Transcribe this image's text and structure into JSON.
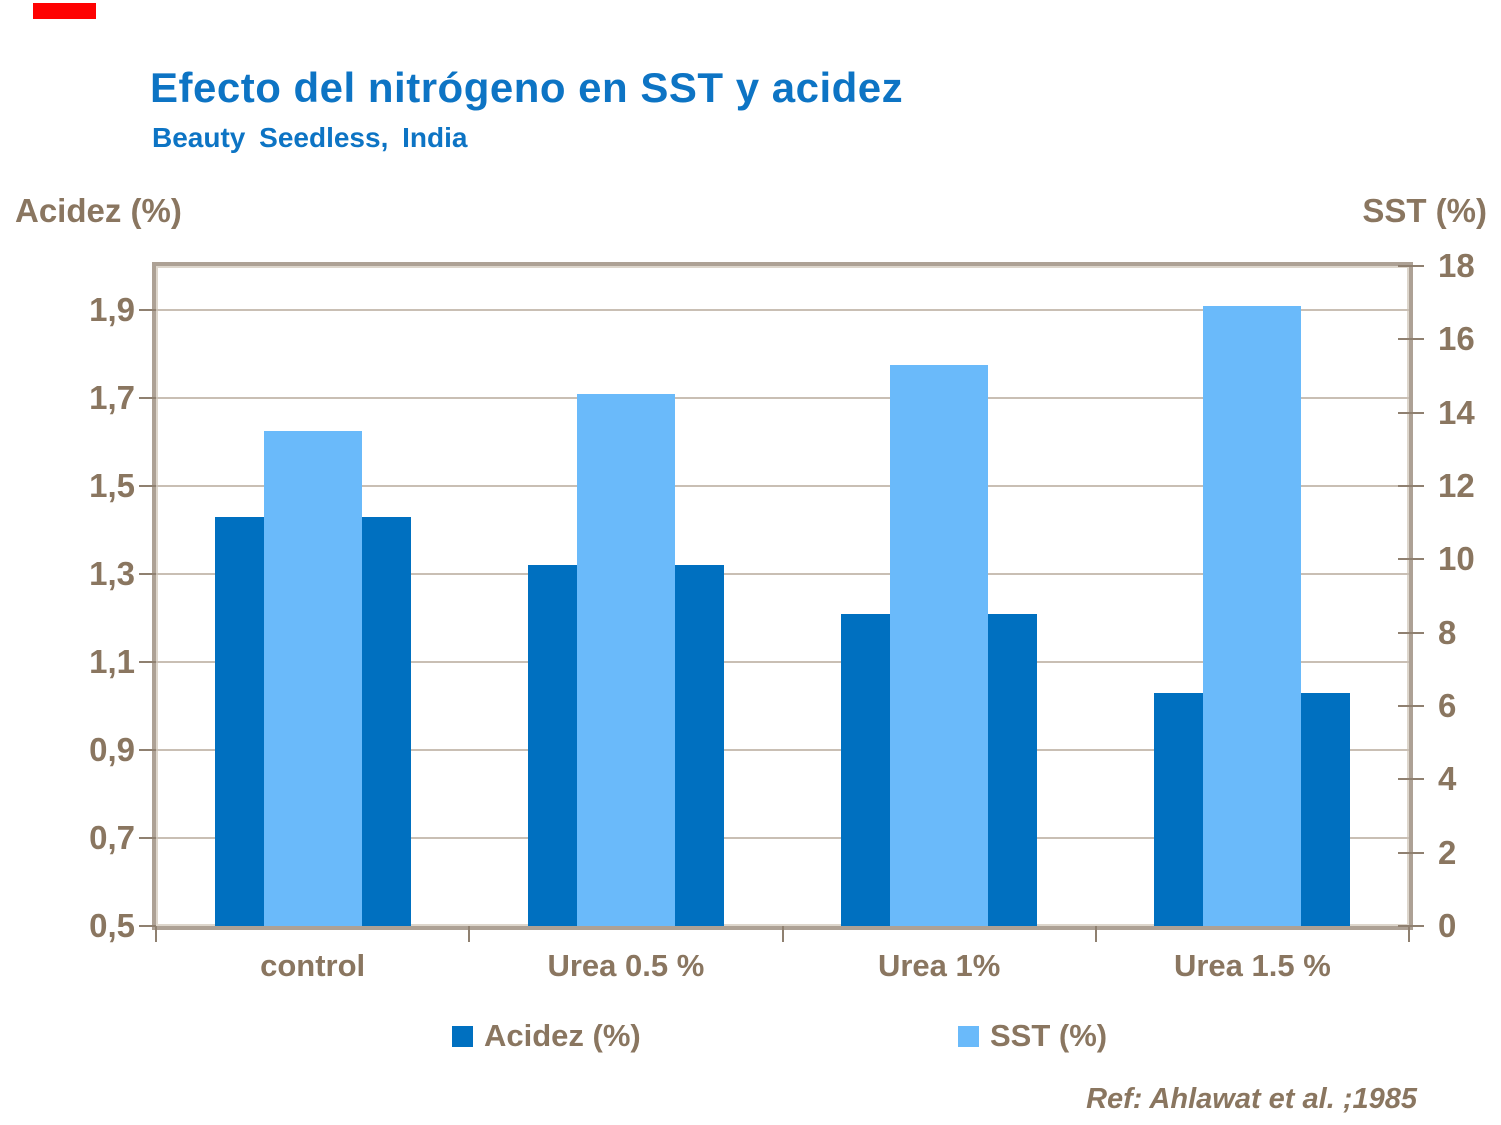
{
  "header": {
    "title": "Efecto del nitrógeno en SST y acidez",
    "subtitle": "Beauty Seedless, India"
  },
  "axis_titles": {
    "left": "Acidez (%)",
    "right": "SST (%)"
  },
  "legend": {
    "items": [
      {
        "label": "Acidez (%)",
        "color": "#0070c0"
      },
      {
        "label": "SST (%)",
        "color": "#6abafa"
      }
    ]
  },
  "footer": {
    "reference": "Ref: Ahlawat et al. ;1985"
  },
  "colors": {
    "title_blue": "#0d74c4",
    "text_taupe": "#8a7660",
    "bar_dark_blue": "#0070c0",
    "bar_light_blue": "#6abafa",
    "gridline": "#c9bfb4",
    "plot_border": "#ada195",
    "red_accent": "#fe0202"
  },
  "chart_data": {
    "type": "bar",
    "title": "Efecto del nitrógeno en SST y acidez",
    "subtitle": "Beauty Seedless, India",
    "categories": [
      "control",
      "Urea 0.5 %",
      "Urea 1%",
      "Urea 1.5 %"
    ],
    "series": [
      {
        "name": "Acidez (%)",
        "axis": "left",
        "color": "#0070c0",
        "values": [
          1.43,
          1.32,
          1.21,
          1.03
        ]
      },
      {
        "name": "SST (%)",
        "axis": "right",
        "color": "#6abafa",
        "values": [
          13.5,
          14.5,
          15.3,
          16.9
        ]
      }
    ],
    "left_axis": {
      "label": "Acidez (%)",
      "min": 0.5,
      "max": 2.0,
      "tick_step": 0.2,
      "tick_labels": [
        "1,9",
        "1,7",
        "1,5",
        "1,3",
        "1,1",
        "0,9",
        "0,7",
        "0,5"
      ],
      "tick_values": [
        1.9,
        1.7,
        1.5,
        1.3,
        1.1,
        0.9,
        0.7,
        0.5
      ]
    },
    "right_axis": {
      "label": "SST (%)",
      "min": 0,
      "max": 18,
      "tick_step": 2,
      "tick_values": [
        18,
        16,
        14,
        12,
        10,
        8,
        6,
        4,
        2,
        0
      ]
    },
    "grid": true,
    "legend_position": "bottom",
    "reference": "Ref: Ahlawat et al. ;1985"
  }
}
